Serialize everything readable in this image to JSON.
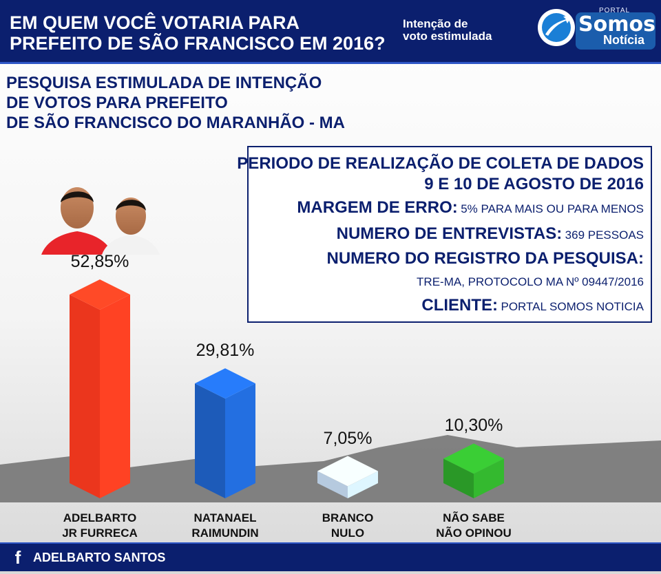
{
  "header": {
    "title": "EM QUEM VOCÊ VOTARIA PARA\nPREFEITO DE SÃO FRANCISCO EM 2016?",
    "subtitle": "Intenção de\nvoto estimulada",
    "logo": {
      "portal": "PORTAL",
      "somos": "Somos",
      "noticia": "Notícia"
    }
  },
  "research_title": "PESQUISA ESTIMULADA DE INTENÇÃO\nDE VOTOS PARA PREFEITO\nDE SÃO FRANCISCO DO MARANHÃO - MA",
  "info": {
    "period_label": "PERIODO DE REALIZAÇÃO DE COLETA DE DADOS",
    "period_value": "9 E 10 DE AGOSTO DE 2016",
    "margin_label": "MARGEM DE ERRO:",
    "margin_value": "5% PARA MAIS OU PARA MENOS",
    "interviews_label": "NUMERO DE ENTREVISTAS:",
    "interviews_value": "369 PESSOAS",
    "registry_label": "NUMERO DO REGISTRO DA PESQUISA:",
    "registry_value": "TRE-MA, PROTOCOLO MA Nº 09447/2016",
    "client_label": "CLIENTE:",
    "client_value": "PORTAL SOMOS NOTICIA"
  },
  "footer": {
    "icon": "facebook-icon",
    "text": "ADELBARTO SANTOS"
  },
  "chart_data": {
    "type": "bar",
    "categories": [
      "ADELBARTO\nJR FURRECA",
      "NATANAEL\nRAIMUNDIN",
      "BRANCO\nNULO",
      "NÃO SABE\nNÃO OPINOU"
    ],
    "values": [
      52.85,
      29.81,
      7.05,
      10.3
    ],
    "value_labels": [
      "52,85%",
      "29,81%",
      "7,05%",
      "10,30%"
    ],
    "colors": [
      "#ff3b1f",
      "#1f63c9",
      "#c6dcf2",
      "#2ea52a"
    ],
    "title": "",
    "xlabel": "",
    "ylabel": ""
  }
}
